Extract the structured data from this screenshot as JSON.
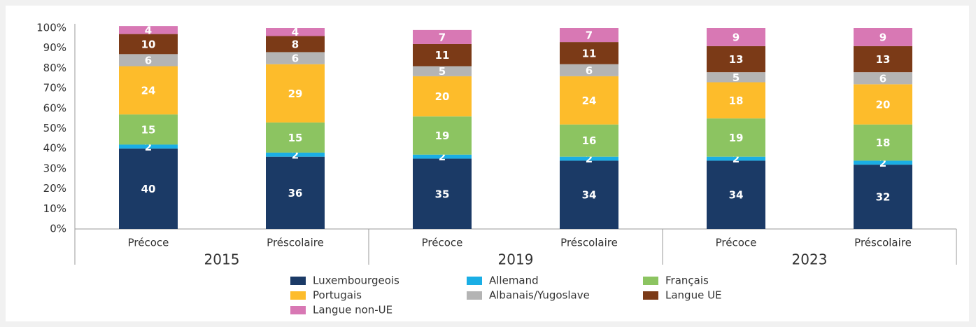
{
  "chart_data": {
    "type": "stacked-bar",
    "categories": [
      "Précoce",
      "Préscolaire",
      "Précoce",
      "Préscolaire",
      "Précoce",
      "Préscolaire"
    ],
    "groups": [
      "2015",
      "2019",
      "2023"
    ],
    "series": [
      {
        "name": "Luxembourgeois",
        "color": "#1b3a66",
        "values": [
          40,
          36,
          35,
          34,
          34,
          32
        ]
      },
      {
        "name": "Allemand",
        "color": "#1aaee5",
        "values": [
          2,
          2,
          2,
          2,
          2,
          2
        ]
      },
      {
        "name": "Français",
        "color": "#8cc461",
        "values": [
          15,
          15,
          19,
          16,
          19,
          18
        ]
      },
      {
        "name": "Portugais",
        "color": "#fdbc2b",
        "values": [
          24,
          29,
          20,
          24,
          18,
          20
        ]
      },
      {
        "name": "Albanais/Yugoslave",
        "color": "#b4b4b4",
        "values": [
          6,
          6,
          5,
          6,
          5,
          6
        ]
      },
      {
        "name": "Langue UE",
        "color": "#7b3a17",
        "values": [
          10,
          8,
          11,
          11,
          13,
          13
        ]
      },
      {
        "name": "Langue non-UE",
        "color": "#d878b4",
        "values": [
          4,
          4,
          7,
          7,
          9,
          9
        ]
      }
    ],
    "ylim": [
      0,
      100
    ],
    "yticks": [
      {
        "value": 0,
        "label": "0%"
      },
      {
        "value": 10,
        "label": "10%"
      },
      {
        "value": 20,
        "label": "20%"
      },
      {
        "value": 30,
        "label": "30%"
      },
      {
        "value": 40,
        "label": "40%"
      },
      {
        "value": 50,
        "label": "50%"
      },
      {
        "value": 60,
        "label": "60%"
      },
      {
        "value": 70,
        "label": "70%"
      },
      {
        "value": 80,
        "label": "80%"
      },
      {
        "value": 90,
        "label": "90%"
      },
      {
        "value": 100,
        "label": "100%"
      }
    ],
    "grid": false
  }
}
